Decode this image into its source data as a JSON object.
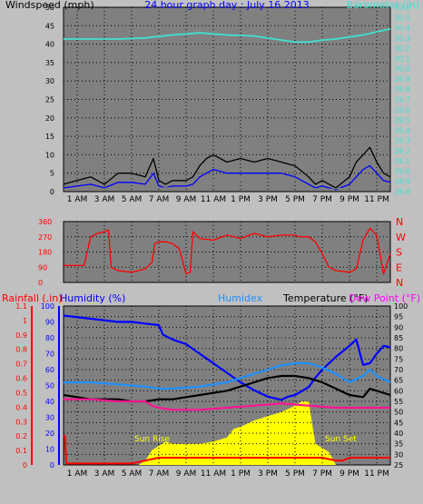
{
  "chart_data": [
    {
      "id": "wind-baro",
      "type": "line",
      "title": "24 hour graph day : July 16 2013",
      "left_axis_title": "Windspeed (mph)",
      "right_axis_title": "Barometer (in)",
      "x_ticks": [
        "1 AM",
        "3 AM",
        "5 AM",
        "7 AM",
        "9 AM",
        "11 AM",
        "1 PM",
        "3 PM",
        "5 PM",
        "7 PM",
        "9 PM",
        "11 PM"
      ],
      "x_range_hours": [
        0,
        24
      ],
      "y_left_range": [
        0,
        50
      ],
      "y_left_ticks": [
        "0",
        "5",
        "10",
        "15",
        "20",
        "25",
        "30",
        "35",
        "40",
        "45",
        "50"
      ],
      "y_right_range": [
        28.8,
        30.6
      ],
      "y_right_ticks": [
        "28.8",
        "28.9",
        "29.0",
        "29.1",
        "29.2",
        "29.3",
        "29.4",
        "29.5",
        "29.6",
        "29.7",
        "29.8",
        "29.9",
        "30.0",
        "30.1",
        "30.2",
        "30.3",
        "30.4",
        "30.5",
        "30.6"
      ],
      "grid": true,
      "series": [
        {
          "key": "gust",
          "axis": "left",
          "color": "#000000",
          "x": [
            0,
            1,
            2,
            3,
            4,
            5,
            6,
            6.6,
            7,
            7.5,
            8,
            9,
            9.5,
            10,
            10.5,
            11,
            12,
            13,
            14,
            15,
            16,
            17,
            18,
            18.5,
            19,
            20,
            21,
            21.5,
            22,
            22.5,
            23,
            23.5,
            24
          ],
          "y": [
            2,
            3,
            4,
            2,
            5,
            5,
            4,
            9,
            3,
            2,
            3,
            3,
            4,
            7,
            9,
            10,
            8,
            9,
            8,
            9,
            8,
            7,
            4,
            2,
            3,
            1,
            4,
            8,
            10,
            12,
            8,
            5,
            4
          ]
        },
        {
          "key": "wind",
          "axis": "left",
          "color": "#0000ff",
          "x": [
            0,
            1,
            2,
            3,
            4,
            5,
            6,
            6.6,
            7,
            7.5,
            8,
            9,
            9.5,
            10,
            10.5,
            11,
            12,
            13,
            14,
            15,
            16,
            17,
            18,
            18.5,
            19,
            20,
            21,
            21.5,
            22,
            22.5,
            23,
            23.5,
            24
          ],
          "y": [
            1,
            1.5,
            2,
            1,
            2.5,
            2.5,
            2,
            5,
            1.5,
            1,
            1.5,
            1.5,
            2,
            4,
            5,
            6,
            5,
            5,
            5,
            5,
            5,
            4,
            2,
            1,
            1.5,
            0.5,
            2,
            4,
            6,
            7,
            5,
            3,
            2.5
          ]
        },
        {
          "key": "avg-wind",
          "axis": "left",
          "color": "#808080",
          "x": [
            0,
            3,
            6,
            9,
            10,
            12,
            14,
            16,
            17,
            18,
            19,
            21,
            22,
            23,
            24
          ],
          "y": [
            0.5,
            0.8,
            1,
            1,
            2,
            3,
            4,
            4,
            3.5,
            1,
            0.5,
            1,
            2.5,
            3,
            2
          ]
        },
        {
          "key": "barometer",
          "axis": "right",
          "color": "#40e0d0",
          "x": [
            0,
            2,
            4,
            6,
            8,
            10,
            11,
            12,
            14,
            16,
            17,
            18,
            19,
            20,
            21,
            22,
            23,
            24
          ],
          "y": [
            30.29,
            30.29,
            30.29,
            30.3,
            30.33,
            30.35,
            30.34,
            30.33,
            30.32,
            30.28,
            30.26,
            30.26,
            30.28,
            30.29,
            30.31,
            30.33,
            30.36,
            30.39
          ]
        }
      ]
    },
    {
      "id": "direction",
      "type": "line",
      "left_axis_ticks": [
        "0",
        "90",
        "180",
        "270",
        "360"
      ],
      "right_axis_ticks": [
        "N",
        "E",
        "S",
        "W",
        "N"
      ],
      "y_range": [
        0,
        360
      ],
      "grid": true,
      "series": [
        {
          "key": "wind-direction",
          "color": "#ff0000",
          "x": [
            0,
            1.5,
            2,
            2.5,
            3,
            3.3,
            3.5,
            4,
            5,
            5.5,
            6,
            6.5,
            6.7,
            7,
            7.5,
            8,
            8.5,
            9,
            9.3,
            9.5,
            10,
            11,
            12,
            13,
            14,
            15,
            16,
            17,
            17.3,
            18,
            18.5,
            19,
            19.5,
            20,
            21,
            21.5,
            22,
            22.5,
            23,
            23.5,
            24
          ],
          "y": [
            100,
            100,
            270,
            290,
            300,
            310,
            90,
            70,
            60,
            70,
            80,
            120,
            230,
            240,
            240,
            230,
            200,
            50,
            60,
            300,
            260,
            250,
            280,
            260,
            290,
            270,
            280,
            280,
            270,
            270,
            240,
            170,
            90,
            70,
            60,
            80,
            250,
            320,
            280,
            50,
            170
          ]
        }
      ]
    },
    {
      "id": "temp-hum",
      "type": "area",
      "title_rain": "Rainfall (.in)",
      "title_humidity": "Humidity (%)",
      "title_humidex": "Humidex",
      "title_temperature": "Temperature (°F)",
      "title_dewpoint": "Dew Point (°F)",
      "annotation_sunrise": "Sun Rise",
      "annotation_sunset": "Sun Set",
      "rain_ticks": [
        "0",
        "0.1",
        "0.2",
        "0.3",
        "0.4",
        "0.5",
        "0.6",
        "0.7",
        "0.8",
        "0.9",
        "1",
        "1.1"
      ],
      "rain_range": [
        0,
        1.1
      ],
      "humidity_ticks": [
        "0",
        "10",
        "20",
        "30",
        "40",
        "50",
        "60",
        "70",
        "80",
        "90",
        "100"
      ],
      "humidity_range": [
        0,
        100
      ],
      "temp_ticks": [
        "25",
        "30",
        "35",
        "40",
        "45",
        "50",
        "55",
        "60",
        "65",
        "70",
        "75",
        "80",
        "85",
        "90",
        "95",
        "100"
      ],
      "temp_range": [
        25,
        100
      ],
      "x_ticks": [
        "1 AM",
        "3 AM",
        "5 AM",
        "7 AM",
        "9 AM",
        "11 AM",
        "1 PM",
        "3 PM",
        "5 PM",
        "7 PM",
        "9 PM",
        "11 PM"
      ],
      "grid": true,
      "solar": {
        "color": "#ffff00",
        "x": [
          0,
          5.5,
          6,
          6.5,
          7,
          7.5,
          8,
          9,
          10,
          11,
          12,
          12.5,
          13,
          14,
          15,
          16,
          17,
          17.5,
          18,
          18.5,
          19,
          19.5,
          20,
          24
        ],
        "y": [
          25,
          25,
          27,
          32,
          34,
          36,
          35,
          35,
          35,
          36,
          38,
          42,
          43,
          46,
          48,
          50,
          53,
          55,
          55,
          35,
          33,
          31,
          25,
          25
        ]
      },
      "series": [
        {
          "key": "rainfall",
          "axis": "rain",
          "color": "#ff0000",
          "x": [
            0,
            0.1,
            0.2,
            5,
            6,
            7,
            7.5,
            8,
            12,
            18,
            19,
            20,
            20.5,
            21,
            22,
            23,
            24
          ],
          "y": [
            0.2,
            0.2,
            0.01,
            0.01,
            0.03,
            0.05,
            0.05,
            0.05,
            0.05,
            0.05,
            0.05,
            0.03,
            0.03,
            0.05,
            0.05,
            0.05,
            0.05
          ]
        },
        {
          "key": "humidity",
          "axis": "humidity",
          "color": "#0000ff",
          "x": [
            0,
            2,
            4,
            5,
            6,
            7,
            7.3,
            8,
            9,
            10,
            11,
            12,
            13,
            14,
            15,
            16,
            16.5,
            17,
            18,
            18.5,
            19,
            20,
            21,
            21.5,
            22,
            22.5,
            23,
            23.5,
            24
          ],
          "y": [
            94,
            92,
            90,
            90,
            89,
            88,
            82,
            79,
            76,
            70,
            64,
            58,
            52,
            47,
            43,
            41,
            43,
            44,
            49,
            55,
            60,
            68,
            75,
            79,
            63,
            64,
            70,
            75,
            74
          ]
        },
        {
          "key": "humidex",
          "axis": "temp",
          "color": "#1e90ff",
          "x": [
            0,
            2,
            4,
            6,
            7,
            8,
            10,
            12,
            13,
            14,
            15,
            16,
            17,
            18,
            19,
            20,
            21,
            22,
            22.5,
            23,
            24
          ],
          "y": [
            64,
            64,
            63,
            62,
            61,
            61,
            62,
            64,
            66,
            68,
            70,
            72,
            73,
            73,
            71,
            68,
            64,
            67,
            70,
            67,
            64
          ]
        },
        {
          "key": "temperature",
          "axis": "temp",
          "color": "#000000",
          "x": [
            0,
            1,
            2,
            4,
            5,
            6,
            7,
            8,
            10,
            12,
            13,
            14,
            15,
            16,
            17,
            18,
            19,
            20,
            21,
            22,
            22.5,
            23,
            24
          ],
          "y": [
            58,
            57,
            56,
            56,
            55,
            55,
            56,
            56,
            58,
            60,
            62,
            64,
            66,
            67,
            67,
            66,
            64,
            61,
            58,
            57,
            61,
            60,
            58
          ]
        },
        {
          "key": "dewpoint",
          "axis": "temp",
          "color": "#ff1493",
          "x": [
            0,
            2,
            4,
            6,
            6.5,
            7,
            8,
            10,
            12,
            14,
            16,
            18,
            20,
            22,
            24
          ],
          "y": [
            56,
            56,
            55,
            55,
            53,
            52,
            51,
            51,
            52,
            53,
            54,
            53,
            52,
            52,
            52
          ]
        }
      ]
    }
  ]
}
